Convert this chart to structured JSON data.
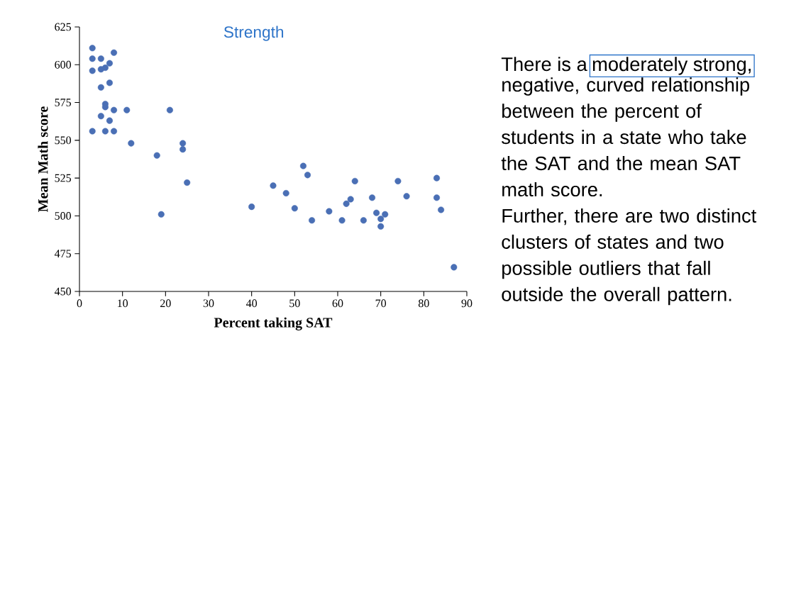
{
  "chart_data": {
    "type": "scatter",
    "title": "Strength",
    "xlabel": "Percent taking SAT",
    "ylabel": "Mean Math score",
    "x": [
      3,
      3,
      3,
      3,
      5,
      5,
      5,
      5,
      6,
      6,
      6,
      6,
      7,
      7,
      7,
      8,
      8,
      8,
      11,
      12,
      18,
      19,
      21,
      24,
      24,
      25,
      40,
      45,
      48,
      50,
      52,
      53,
      54,
      58,
      61,
      62,
      63,
      64,
      66,
      68,
      69,
      70,
      70,
      71,
      74,
      76,
      83,
      83,
      84,
      87
    ],
    "series": [
      {
        "color": "#4a6fb5",
        "values": [
          611,
          604,
          596,
          556,
          604,
          597,
          585,
          566,
          598,
          574,
          572,
          556,
          601,
          588,
          563,
          608,
          570,
          556,
          570,
          548,
          540,
          501,
          570,
          548,
          544,
          522,
          506,
          520,
          515,
          505,
          533,
          527,
          497,
          503,
          497,
          508,
          511,
          523,
          497,
          512,
          502,
          498,
          493,
          501,
          523,
          513,
          525,
          512,
          504,
          466
        ]
      }
    ],
    "xlim": [
      0,
      90
    ],
    "ylim": [
      450,
      625
    ],
    "xticks": [
      0,
      10,
      20,
      30,
      40,
      50,
      60,
      70,
      80,
      90
    ],
    "yticks": [
      450,
      475,
      500,
      525,
      550,
      575,
      600,
      625
    ],
    "annotations": [
      "There is a",
      "moderately strong,",
      "negative, curved relationship between the percent of students in a state who take the SAT and the mean SAT math score.",
      "Further, there are two distinct clusters of states and two possible outliers that fall outside the overall pattern."
    ]
  }
}
